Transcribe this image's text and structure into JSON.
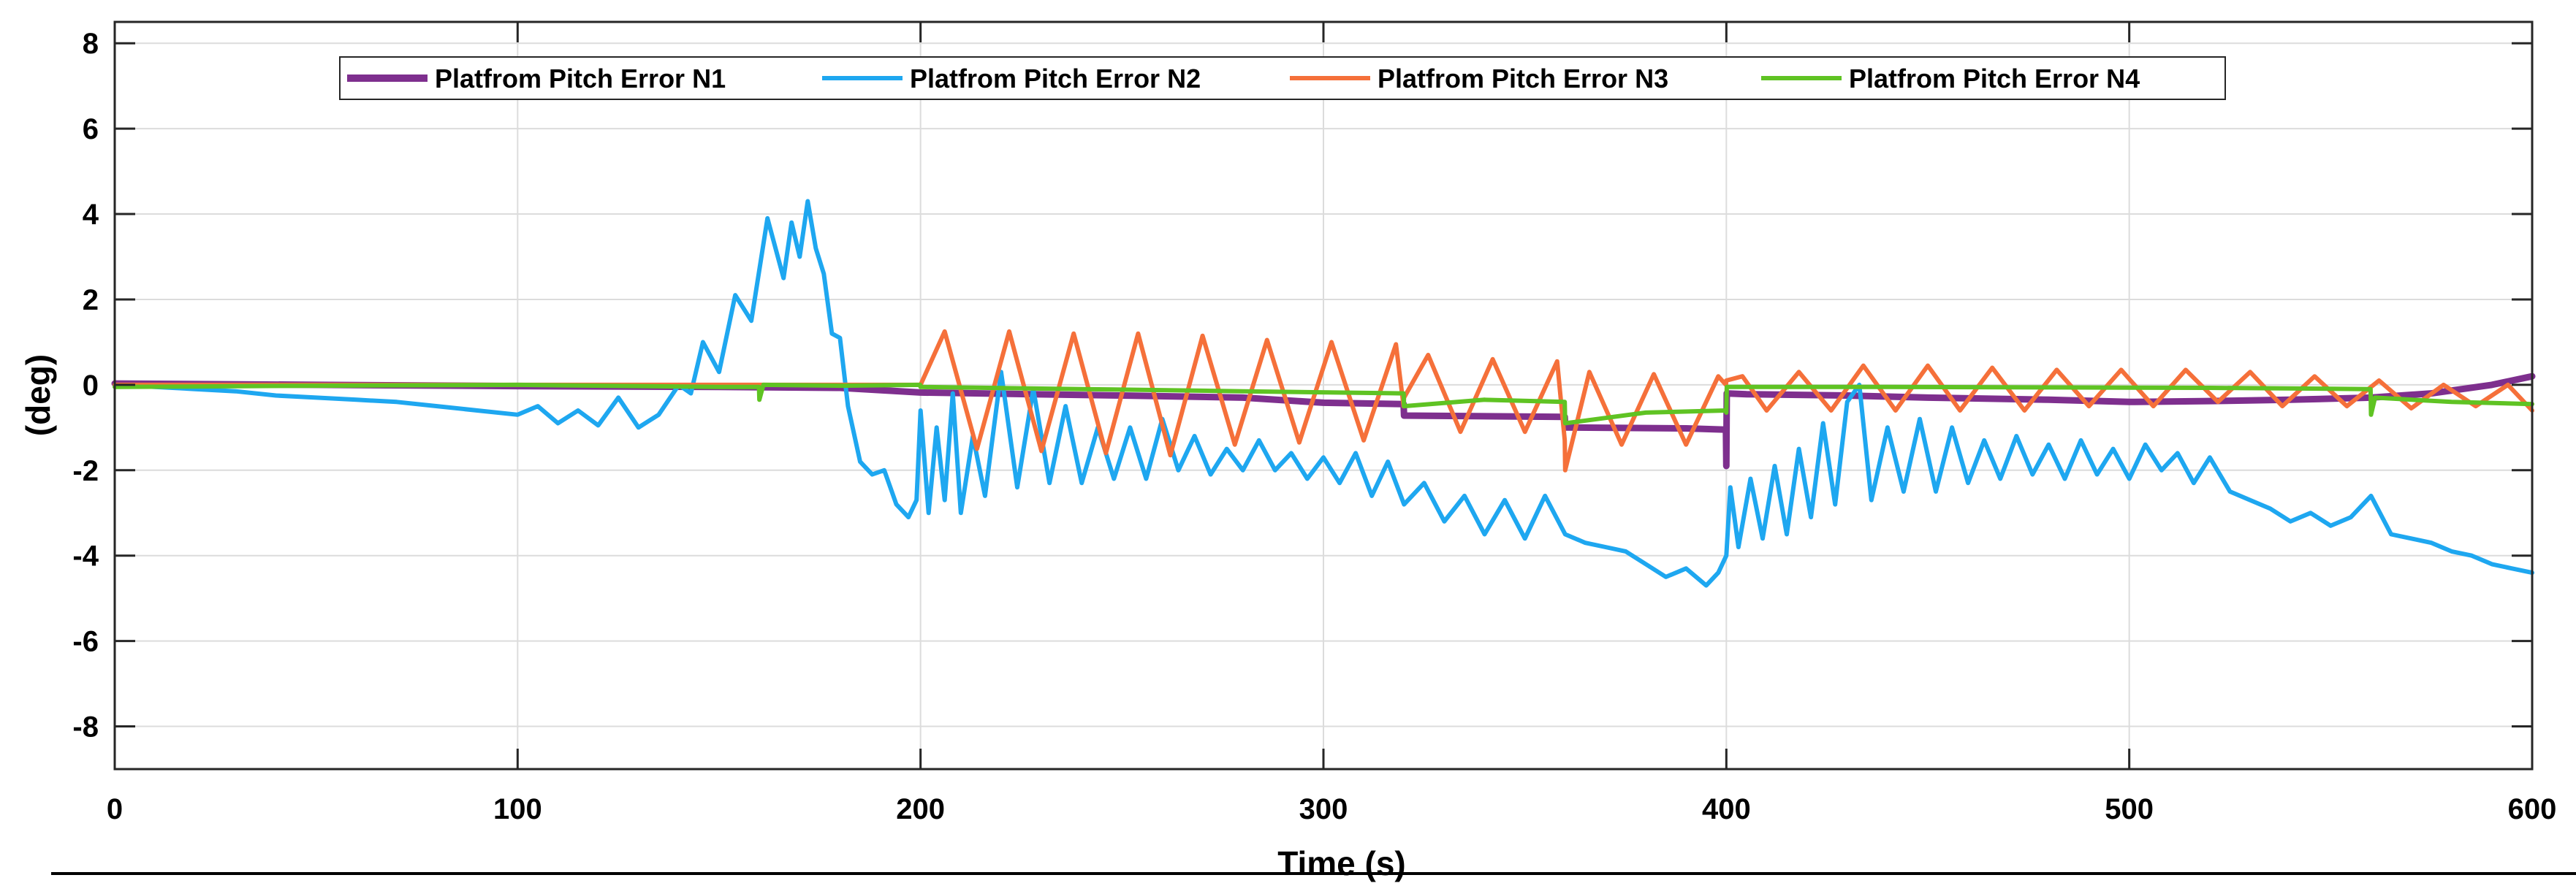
{
  "chart_data": {
    "type": "line",
    "title": "",
    "xlabel": "Time (s)",
    "ylabel": "(deg)",
    "xlim": [
      0,
      600
    ],
    "ylim": [
      -9,
      8.5
    ],
    "xticks": [
      0,
      100,
      200,
      300,
      400,
      500,
      600
    ],
    "yticks": [
      -8,
      -6,
      -4,
      -2,
      0,
      2,
      4,
      6,
      8
    ],
    "grid": true,
    "legend_position": "top",
    "colors": {
      "n1": "#7e2f8e",
      "n2": "#1ea7f0",
      "n3": "#f5703a",
      "n4": "#5fc323"
    },
    "series": [
      {
        "name": "Platfrom Pitch Error N1",
        "color": "#7e2f8e",
        "x": [
          0,
          50,
          100,
          150,
          180,
          200,
          250,
          280,
          300,
          319.9,
          320,
          359.9,
          360,
          390,
          399.9,
          400,
          400.1,
          405,
          430,
          450,
          480,
          500,
          520,
          540,
          560,
          575,
          590,
          600
        ],
        "y": [
          0.03,
          0.0,
          -0.03,
          -0.05,
          -0.07,
          -0.18,
          -0.25,
          -0.3,
          -0.42,
          -0.45,
          -0.72,
          -0.75,
          -1.0,
          -1.02,
          -1.05,
          -1.9,
          -0.2,
          -0.22,
          -0.25,
          -0.3,
          -0.35,
          -0.4,
          -0.38,
          -0.35,
          -0.3,
          -0.2,
          0.0,
          0.2
        ]
      },
      {
        "name": "Platfrom Pitch Error N2",
        "color": "#1ea7f0",
        "x": [
          0,
          10,
          20,
          30,
          40,
          50,
          60,
          70,
          80,
          90,
          100,
          105,
          110,
          115,
          120,
          125,
          130,
          135,
          140,
          143,
          146,
          150,
          154,
          158,
          162,
          166,
          168,
          170,
          172,
          174,
          176,
          178,
          180,
          182,
          185,
          188,
          191,
          194,
          197,
          199,
          200,
          202,
          204,
          206,
          208,
          210,
          213,
          216,
          220,
          224,
          228,
          232,
          236,
          240,
          244,
          248,
          252,
          256,
          260,
          264,
          268,
          272,
          276,
          280,
          284,
          288,
          292,
          296,
          300,
          304,
          308,
          312,
          316,
          320,
          325,
          330,
          335,
          340,
          345,
          350,
          355,
          360,
          365,
          370,
          375,
          380,
          385,
          390,
          395,
          398,
          400,
          401,
          403,
          406,
          409,
          412,
          415,
          418,
          421,
          424,
          427,
          430,
          433,
          436,
          440,
          444,
          448,
          452,
          456,
          460,
          464,
          468,
          472,
          476,
          480,
          484,
          488,
          492,
          496,
          500,
          504,
          508,
          512,
          516,
          520,
          525,
          530,
          535,
          540,
          545,
          550,
          555,
          560,
          565,
          570,
          575,
          580,
          585,
          590,
          595,
          600
        ],
        "y": [
          0.0,
          -0.05,
          -0.1,
          -0.15,
          -0.25,
          -0.3,
          -0.35,
          -0.4,
          -0.5,
          -0.6,
          -0.7,
          -0.5,
          -0.9,
          -0.6,
          -0.95,
          -0.3,
          -1.0,
          -0.7,
          0.0,
          -0.2,
          1.0,
          0.3,
          2.1,
          1.5,
          3.9,
          2.5,
          3.8,
          3.0,
          4.3,
          3.2,
          2.6,
          1.2,
          1.1,
          -0.5,
          -1.8,
          -2.1,
          -2.0,
          -2.8,
          -3.1,
          -2.7,
          -0.6,
          -3.0,
          -1.0,
          -2.7,
          -0.2,
          -3.0,
          -1.2,
          -2.6,
          0.3,
          -2.4,
          -0.1,
          -2.3,
          -0.5,
          -2.3,
          -1.0,
          -2.2,
          -1.0,
          -2.2,
          -0.8,
          -2.0,
          -1.2,
          -2.1,
          -1.5,
          -2.0,
          -1.3,
          -2.0,
          -1.6,
          -2.2,
          -1.7,
          -2.3,
          -1.6,
          -2.6,
          -1.8,
          -2.8,
          -2.3,
          -3.2,
          -2.6,
          -3.5,
          -2.7,
          -3.6,
          -2.6,
          -3.5,
          -3.7,
          -3.8,
          -3.9,
          -4.2,
          -4.5,
          -4.3,
          -4.7,
          -4.4,
          -4.0,
          -2.4,
          -3.8,
          -2.2,
          -3.6,
          -1.9,
          -3.5,
          -1.5,
          -3.1,
          -0.9,
          -2.8,
          -0.4,
          0.0,
          -2.7,
          -1.0,
          -2.5,
          -0.8,
          -2.5,
          -1.0,
          -2.3,
          -1.3,
          -2.2,
          -1.2,
          -2.1,
          -1.4,
          -2.2,
          -1.3,
          -2.1,
          -1.5,
          -2.2,
          -1.4,
          -2.0,
          -1.6,
          -2.3,
          -1.7,
          -2.5,
          -2.7,
          -2.9,
          -3.2,
          -3.0,
          -3.3,
          -3.1,
          -2.6,
          -3.5,
          -3.6,
          -3.7,
          -3.9,
          -4.0,
          -4.2,
          -4.3,
          -4.4
        ]
      },
      {
        "name": "Platfrom Pitch Error N3",
        "color": "#f5703a",
        "x": [
          0,
          50,
          100,
          150,
          190,
          199.9,
          200,
          206,
          214,
          222,
          230,
          238,
          246,
          254,
          262,
          270,
          278,
          286,
          294,
          302,
          310,
          318,
          319.9,
          320,
          326,
          334,
          342,
          350,
          358,
          359.9,
          360,
          366,
          374,
          382,
          390,
          398,
          399.9,
          400,
          404,
          410,
          418,
          426,
          434,
          442,
          450,
          458,
          466,
          474,
          482,
          490,
          498,
          506,
          514,
          522,
          530,
          538,
          546,
          554,
          562,
          570,
          578,
          586,
          594,
          600
        ],
        "y": [
          0.0,
          0.0,
          0.0,
          0.0,
          0.0,
          0.0,
          0.0,
          1.25,
          -1.5,
          1.25,
          -1.55,
          1.2,
          -1.6,
          1.2,
          -1.65,
          1.15,
          -1.4,
          1.05,
          -1.35,
          1.0,
          -1.3,
          0.95,
          -0.5,
          -0.3,
          0.7,
          -1.1,
          0.6,
          -1.1,
          0.55,
          -1.3,
          -2.0,
          0.3,
          -1.4,
          0.25,
          -1.4,
          0.2,
          0.0,
          0.1,
          0.2,
          -0.6,
          0.3,
          -0.6,
          0.45,
          -0.6,
          0.45,
          -0.6,
          0.4,
          -0.6,
          0.35,
          -0.5,
          0.35,
          -0.5,
          0.35,
          -0.4,
          0.3,
          -0.5,
          0.2,
          -0.5,
          0.1,
          -0.55,
          0.0,
          -0.5,
          0.0,
          -0.6
        ]
      },
      {
        "name": "Platfrom Pitch Error N4",
        "color": "#5fc323",
        "x": [
          0,
          50,
          100,
          150,
          159.9,
          160,
          161,
          180,
          199.9,
          200,
          240,
          280,
          319.9,
          320,
          340,
          359.9,
          360,
          380,
          399.9,
          400,
          400.1,
          440,
          480,
          520,
          559.9,
          560,
          561,
          580,
          600
        ],
        "y": [
          -0.05,
          -0.02,
          0.0,
          -0.05,
          -0.05,
          -0.35,
          0.0,
          -0.02,
          0.0,
          -0.05,
          -0.1,
          -0.15,
          -0.2,
          -0.5,
          -0.35,
          -0.4,
          -0.9,
          -0.65,
          -0.6,
          -0.65,
          -0.05,
          -0.05,
          -0.06,
          -0.07,
          -0.1,
          -0.7,
          -0.3,
          -0.4,
          -0.45
        ]
      }
    ]
  }
}
